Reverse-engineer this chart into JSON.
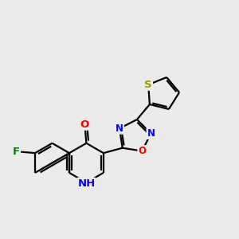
{
  "bg_color": "#ebebeb",
  "bond_color": "#000000",
  "bond_width": 1.6,
  "atom_colors": {
    "F": "#008000",
    "O": "#ff0000",
    "N": "#0000ff",
    "S": "#999900",
    "C": "#000000",
    "H": "#0000cd"
  },
  "font_size": 9.5,
  "fig_size": [
    3.0,
    3.0
  ],
  "dpi": 100
}
